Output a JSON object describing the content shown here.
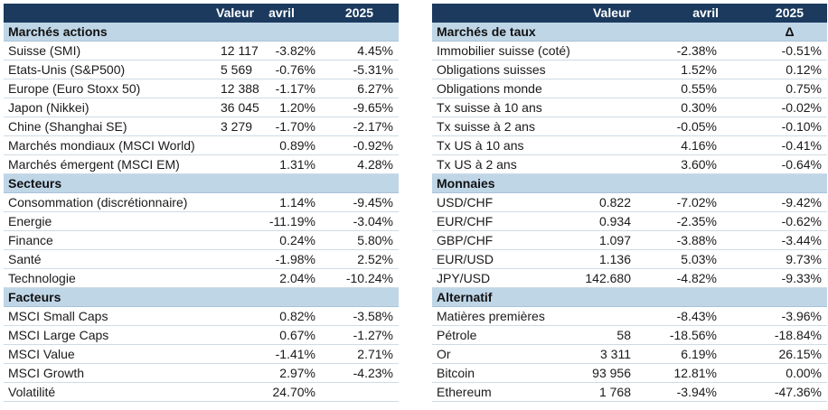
{
  "left": {
    "headers": [
      "",
      "Valeur",
      "avril",
      "2025"
    ],
    "sections": [
      {
        "title": "Marchés actions",
        "rows": [
          {
            "name": "Suisse (SMI)",
            "value": "12 117",
            "month": "-3.82%",
            "ytd": "4.45%"
          },
          {
            "name": "Etats-Unis (S&P500)",
            "value": "5 569",
            "month": "-0.76%",
            "ytd": "-5.31%"
          },
          {
            "name": "Europe (Euro Stoxx 50)",
            "value": "12 388",
            "month": "-1.17%",
            "ytd": "6.27%"
          },
          {
            "name": "Japon (Nikkei)",
            "value": "36 045",
            "month": "1.20%",
            "ytd": "-9.65%"
          },
          {
            "name": "Chine (Shanghai SE)",
            "value": "3 279",
            "month": "-1.70%",
            "ytd": "-2.17%"
          },
          {
            "name": "Marchés mondiaux (MSCI World)",
            "value": "",
            "month": "0.89%",
            "ytd": "-0.92%"
          },
          {
            "name": "Marchés émergent (MSCI EM)",
            "value": "",
            "month": "1.31%",
            "ytd": "4.28%"
          }
        ]
      },
      {
        "title": "Secteurs",
        "rows": [
          {
            "name": "Consommation (discrétionnaire)",
            "value": "",
            "month": "1.14%",
            "ytd": "-9.45%"
          },
          {
            "name": "Energie",
            "value": "",
            "month": "-11.19%",
            "ytd": "-3.04%"
          },
          {
            "name": "Finance",
            "value": "",
            "month": "0.24%",
            "ytd": "5.80%"
          },
          {
            "name": "Santé",
            "value": "",
            "month": "-1.98%",
            "ytd": "2.52%"
          },
          {
            "name": "Technologie",
            "value": "",
            "month": "2.04%",
            "ytd": "-10.24%"
          }
        ]
      },
      {
        "title": "Facteurs",
        "rows": [
          {
            "name": "MSCI Small Caps",
            "value": "",
            "month": "0.82%",
            "ytd": "-3.58%"
          },
          {
            "name": "MSCI Large Caps",
            "value": "",
            "month": "0.67%",
            "ytd": "-1.27%"
          },
          {
            "name": "MSCI Value",
            "value": "",
            "month": "-1.41%",
            "ytd": "2.71%"
          },
          {
            "name": "MSCI Growth",
            "value": "",
            "month": "2.97%",
            "ytd": "-4.23%"
          },
          {
            "name": "Volatilité",
            "value": "",
            "month": "24.70%",
            "ytd": ""
          }
        ]
      }
    ]
  },
  "right": {
    "headers": [
      "",
      "Valeur",
      "avril",
      "2025"
    ],
    "sections": [
      {
        "title": "Marchés de taux",
        "title_extra": "Δ",
        "rows": [
          {
            "name": "Immobilier suisse (coté)",
            "value": "",
            "month": "-2.38%",
            "ytd": "-0.51%"
          },
          {
            "name": "Obligations suisses",
            "value": "",
            "month": "1.52%",
            "ytd": "0.12%"
          },
          {
            "name": "Obligations monde",
            "value": "",
            "month": "0.55%",
            "ytd": "0.75%"
          },
          {
            "name": "Tx suisse à 10 ans",
            "value": "",
            "month": "0.30%",
            "ytd": "-0.02%"
          },
          {
            "name": "Tx suisse à 2 ans",
            "value": "",
            "month": "-0.05%",
            "ytd": "-0.10%"
          },
          {
            "name": "Tx US à 10 ans",
            "value": "",
            "month": "4.16%",
            "ytd": "-0.41%"
          },
          {
            "name": "Tx US à 2 ans",
            "value": "",
            "month": "3.60%",
            "ytd": "-0.64%"
          }
        ]
      },
      {
        "title": "Monnaies",
        "rows": [
          {
            "name": "USD/CHF",
            "value": "0.822",
            "month": "-7.02%",
            "ytd": "-9.42%"
          },
          {
            "name": "EUR/CHF",
            "value": "0.934",
            "month": "-2.35%",
            "ytd": "-0.62%"
          },
          {
            "name": "GBP/CHF",
            "value": "1.097",
            "month": "-3.88%",
            "ytd": "-3.44%"
          },
          {
            "name": "EUR/USD",
            "value": "1.136",
            "month": "5.03%",
            "ytd": "9.73%"
          },
          {
            "name": "JPY/USD",
            "value": "142.680",
            "month": "-4.82%",
            "ytd": "-9.33%"
          }
        ]
      },
      {
        "title": "Alternatif",
        "rows": [
          {
            "name": "Matières premières",
            "value": "",
            "month": "-8.43%",
            "ytd": "-3.96%"
          },
          {
            "name": "Pétrole",
            "value": "58",
            "month": "-18.56%",
            "ytd": "-18.84%"
          },
          {
            "name": "Or",
            "value": "3 311",
            "month": "6.19%",
            "ytd": "26.15%"
          },
          {
            "name": "Bitcoin",
            "value": "93 956",
            "month": "12.81%",
            "ytd": "0.00%"
          },
          {
            "name": "Ethereum",
            "value": "1 768",
            "month": "-3.94%",
            "ytd": "-47.36%"
          }
        ]
      }
    ]
  },
  "colors": {
    "header_bg": "#1b3a5e",
    "section_bg": "#bfd6e7",
    "row_border": "#cfdbe4"
  }
}
